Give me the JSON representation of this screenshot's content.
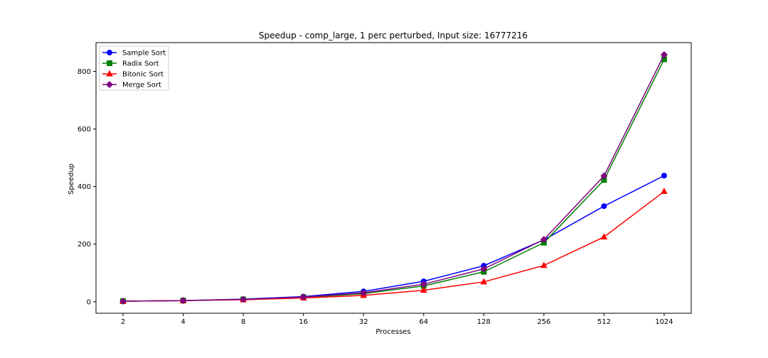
{
  "chart_data": {
    "type": "line",
    "title": "Speedup - comp_large, 1 perc perturbed, Input size: 16777216",
    "xlabel": "Processes",
    "ylabel": "Speedup",
    "x": [
      2,
      4,
      8,
      16,
      32,
      64,
      128,
      256,
      512,
      1024
    ],
    "x_ticks": [
      "2",
      "4",
      "8",
      "16",
      "32",
      "64",
      "128",
      "256",
      "512",
      "1024"
    ],
    "y_ticks": [
      "0",
      "200",
      "400",
      "600",
      "800"
    ],
    "y_tick_values": [
      0,
      200,
      400,
      600,
      800
    ],
    "ylim": [
      -40,
      900
    ],
    "x_scale": "log2",
    "grid": false,
    "legend_position": "top-left",
    "series": [
      {
        "name": "Sample Sort",
        "color": "#0000ff",
        "marker": "circle",
        "values": [
          2,
          4,
          9,
          18,
          36,
          71,
          125,
          215,
          332,
          438
        ]
      },
      {
        "name": "Radix Sort",
        "color": "#008000",
        "marker": "square",
        "values": [
          2,
          4,
          8,
          15,
          28,
          55,
          104,
          205,
          423,
          842
        ]
      },
      {
        "name": "Bitonic Sort",
        "color": "#ff0000",
        "marker": "triangle",
        "values": [
          2,
          4,
          7,
          13,
          22,
          40,
          69,
          126,
          225,
          383
        ]
      },
      {
        "name": "Merge Sort",
        "color": "#800080",
        "marker": "diamond",
        "values": [
          2,
          4,
          8,
          16,
          31,
          61,
          114,
          216,
          437,
          858
        ]
      }
    ]
  }
}
